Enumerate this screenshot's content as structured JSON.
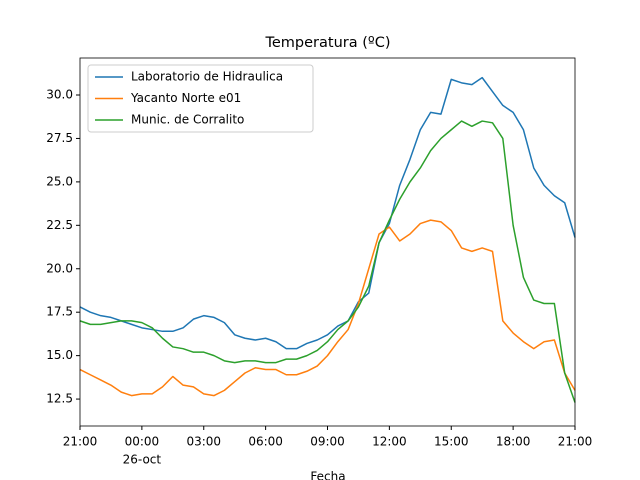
{
  "chart_data": {
    "type": "line",
    "title": "Temperatura (ºC)",
    "xlabel": "Fecha",
    "x": [
      0,
      0.5,
      1,
      1.5,
      2,
      2.5,
      3,
      3.5,
      4,
      4.5,
      5,
      5.5,
      6,
      6.5,
      7,
      7.5,
      8,
      8.5,
      9,
      9.5,
      10,
      10.5,
      11,
      11.5,
      12,
      12.5,
      13,
      13.5,
      14,
      14.5,
      15,
      15.5,
      16,
      16.5,
      17,
      17.5,
      18,
      18.5,
      19,
      19.5,
      20,
      20.5,
      21,
      21.5,
      22,
      22.5,
      23,
      23.5,
      24
    ],
    "series": [
      {
        "name": "Laboratorio de Hidraulica",
        "color": "#1f77b4",
        "values": [
          17.8,
          17.5,
          17.3,
          17.2,
          17.0,
          16.8,
          16.6,
          16.5,
          16.4,
          16.4,
          16.6,
          17.1,
          17.3,
          17.2,
          16.9,
          16.2,
          16.0,
          15.9,
          16.0,
          15.8,
          15.4,
          15.4,
          15.7,
          15.9,
          16.2,
          16.7,
          17.0,
          18.1,
          18.6,
          21.5,
          22.6,
          24.8,
          26.3,
          28.0,
          29.0,
          28.9,
          30.9,
          30.7,
          30.6,
          31.0,
          30.2,
          29.4,
          29.0,
          28.0,
          25.8,
          24.8,
          24.2,
          23.8,
          21.8
        ]
      },
      {
        "name": "Yacanto Norte e01",
        "color": "#ff7f0e",
        "values": [
          14.2,
          13.9,
          13.6,
          13.3,
          12.9,
          12.7,
          12.8,
          12.8,
          13.2,
          13.8,
          13.3,
          13.2,
          12.8,
          12.7,
          13.0,
          13.5,
          14.0,
          14.3,
          14.2,
          14.2,
          13.9,
          13.9,
          14.1,
          14.4,
          15.0,
          15.8,
          16.5,
          18.0,
          20.0,
          22.0,
          22.4,
          21.6,
          22.0,
          22.6,
          22.8,
          22.7,
          22.2,
          21.2,
          21.0,
          21.2,
          21.0,
          17.0,
          16.3,
          15.8,
          15.4,
          15.8,
          15.9,
          14.0,
          13.0
        ]
      },
      {
        "name": "Munic. de Corralito",
        "color": "#2ca02c",
        "values": [
          17.0,
          16.8,
          16.8,
          16.9,
          17.0,
          17.0,
          16.9,
          16.6,
          16.0,
          15.5,
          15.4,
          15.2,
          15.2,
          15.0,
          14.7,
          14.6,
          14.7,
          14.7,
          14.6,
          14.6,
          14.8,
          14.8,
          15.0,
          15.3,
          15.8,
          16.5,
          17.0,
          17.8,
          19.0,
          21.5,
          22.8,
          24.0,
          25.0,
          25.8,
          26.8,
          27.5,
          28.0,
          28.5,
          28.2,
          28.5,
          28.4,
          27.5,
          22.5,
          19.5,
          18.2,
          18.0,
          18.0,
          14.0,
          12.3
        ]
      }
    ],
    "xlim": [
      0,
      24
    ],
    "xticks": [
      {
        "value": 0,
        "label": "21:00"
      },
      {
        "value": 3,
        "label": "00:00"
      },
      {
        "value": 6,
        "label": "03:00"
      },
      {
        "value": 9,
        "label": "06:00"
      },
      {
        "value": 12,
        "label": "09:00"
      },
      {
        "value": 15,
        "label": "12:00"
      },
      {
        "value": 18,
        "label": "15:00"
      },
      {
        "value": 21,
        "label": "18:00"
      },
      {
        "value": 24,
        "label": "21:00"
      }
    ],
    "x_date_label": {
      "value": 3,
      "label": "26-oct"
    },
    "ylim": [
      10.95,
      32.13
    ],
    "yticks": [
      12.5,
      {
        "value": 15,
        "label": "15.0"
      },
      17.5,
      {
        "value": 20,
        "label": "20.0"
      },
      22.5,
      {
        "value": 25,
        "label": "25.0"
      },
      27.5,
      {
        "value": 30,
        "label": "30.0"
      }
    ],
    "grid": false,
    "legend": "upper left"
  }
}
